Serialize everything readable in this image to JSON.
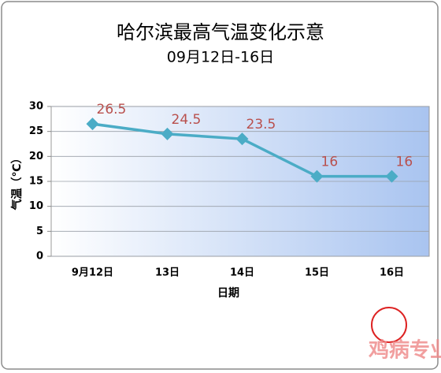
{
  "chart_data": {
    "type": "line",
    "title": "哈尔滨最高气温变化示意",
    "subtitle": "09月12日-16日",
    "x_label": "日期",
    "y_label": "气温（℃）",
    "categories": [
      "9月12日",
      "13日",
      "14日",
      "15日",
      "16日"
    ],
    "series": [
      {
        "name": "最高气温",
        "color": "#4bacc6",
        "values": [
          26.5,
          24.5,
          23.5,
          16,
          16
        ]
      }
    ],
    "label_color": "#b9504d",
    "ylim": [
      0,
      30
    ],
    "yticks": [
      0,
      5,
      10,
      15,
      20,
      25,
      30
    ],
    "grid": true
  },
  "watermark": "鸡病专业网"
}
